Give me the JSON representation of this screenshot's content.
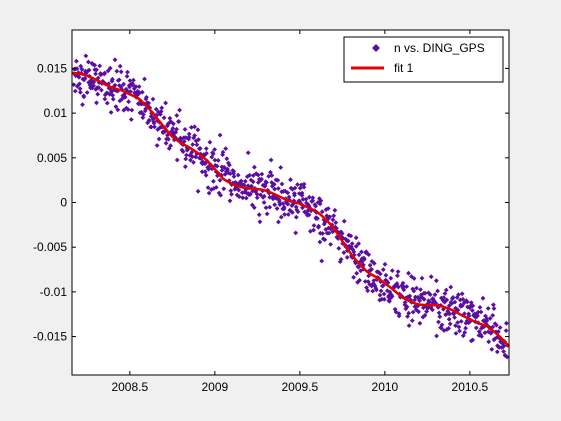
{
  "chart_data": {
    "type": "scatter",
    "title": "",
    "xlabel": "",
    "ylabel": "",
    "xlim": [
      2008.16,
      2010.73
    ],
    "ylim": [
      -0.0193,
      0.0193
    ],
    "x_ticks": [
      2008.5,
      2009,
      2009.5,
      2010,
      2010.5
    ],
    "x_tick_labels": [
      "2008.5",
      "2009",
      "2009.5",
      "2010",
      "2010.5"
    ],
    "y_ticks": [
      0.015,
      0.01,
      0.005,
      0,
      -0.005,
      -0.01,
      -0.015
    ],
    "y_tick_labels": [
      "0.015",
      "0.01",
      "0.005",
      "0",
      "-0.005",
      "-0.01",
      "-0.015"
    ],
    "grid": false,
    "legend_position": "top-right",
    "series": [
      {
        "name": "n vs. DING_GPS",
        "kind": "scatter",
        "marker": "diamond",
        "color": "#5a0fa0",
        "approx_points": 900
      },
      {
        "name": "fit 1",
        "kind": "line",
        "color": "#e00000",
        "x": [
          2008.16,
          2008.3,
          2008.45,
          2008.55,
          2008.65,
          2008.75,
          2008.85,
          2008.95,
          2009.05,
          2009.2,
          2009.35,
          2009.5,
          2009.6,
          2009.7,
          2009.8,
          2009.9,
          2010.0,
          2010.1,
          2010.2,
          2010.3,
          2010.4,
          2010.5,
          2010.6,
          2010.73
        ],
        "y": [
          0.0145,
          0.0136,
          0.0128,
          0.0115,
          0.0095,
          0.0076,
          0.0062,
          0.0045,
          0.0027,
          0.0016,
          0.0008,
          0.0001,
          -0.0012,
          -0.003,
          -0.0055,
          -0.0078,
          -0.0093,
          -0.0105,
          -0.0112,
          -0.0117,
          -0.0122,
          -0.0128,
          -0.0138,
          -0.0163
        ]
      }
    ]
  }
}
